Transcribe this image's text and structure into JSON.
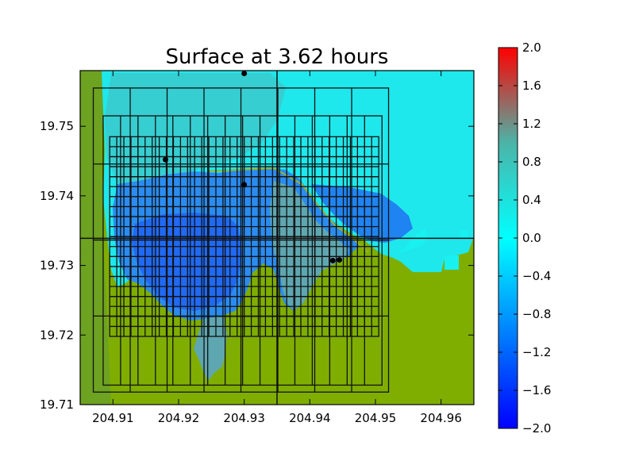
{
  "chart_data": {
    "type": "heatmap",
    "title": "Surface at 3.62 hours",
    "xlabel": "",
    "ylabel": "",
    "xlim": [
      204.905,
      204.965
    ],
    "ylim": [
      19.71,
      19.758
    ],
    "x_ticks": [
      204.91,
      204.92,
      204.93,
      204.94,
      204.95,
      204.96
    ],
    "x_tick_labels": [
      "204.91",
      "204.92",
      "204.93",
      "204.94",
      "204.95",
      "204.96"
    ],
    "y_ticks": [
      19.71,
      19.72,
      19.73,
      19.74,
      19.75
    ],
    "y_tick_labels": [
      "19.71",
      "19.72",
      "19.73",
      "19.74",
      "19.75"
    ],
    "colorbar": {
      "range": [
        -2.0,
        2.0
      ],
      "ticks": [
        2.0,
        1.6,
        1.2,
        0.8,
        0.4,
        0.0,
        -0.4,
        -0.8,
        -1.2,
        -1.6,
        -2.0
      ],
      "tick_labels": [
        "2.0",
        "1.6",
        "1.2",
        "0.8",
        "0.4",
        "0.0",
        "−0.4",
        "−0.8",
        "−1.2",
        "−1.6",
        "−2.0"
      ],
      "colors": [
        "#0000ff",
        "#00ffff",
        "#ff0000"
      ]
    },
    "land_color": "#7fae00",
    "grid_lines": {
      "x": [
        204.935
      ],
      "y": [
        19.7339
      ]
    },
    "patch_boxes": [
      {
        "x": [
          204.907,
          204.952
        ],
        "y": [
          19.7118,
          19.7555
        ]
      },
      {
        "x": [
          204.9085,
          204.951
        ],
        "y": [
          19.7128,
          19.7515
        ]
      },
      {
        "x": [
          204.9095,
          204.9505
        ],
        "y": [
          19.7198,
          19.7485
        ]
      }
    ],
    "gauges": [
      {
        "x": 204.93,
        "y": 19.7576
      },
      {
        "x": 204.918,
        "y": 19.7452
      },
      {
        "x": 204.93,
        "y": 19.7416
      },
      {
        "x": 204.9435,
        "y": 19.7307
      },
      {
        "x": 204.9445,
        "y": 19.7308
      }
    ]
  }
}
